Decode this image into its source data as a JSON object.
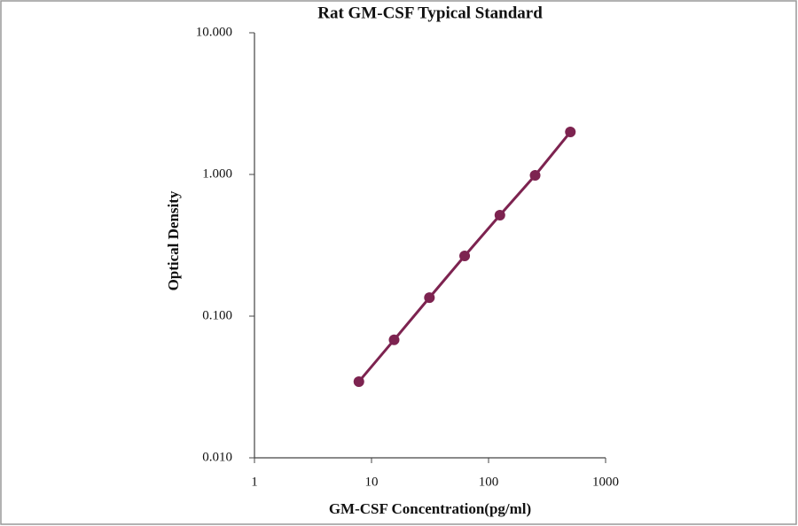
{
  "chart_data": {
    "type": "scatter",
    "title": "Rat GM-CSF Typical Standard",
    "x_label": "GM-CSF Concentration(pg/ml)",
    "y_label": "Optical Density",
    "x_log": true,
    "y_log": true,
    "series": [
      {
        "color": "#7d2350",
        "x": [
          7.8,
          15.6,
          31.25,
          62.5,
          125,
          250,
          500
        ],
        "values": [
          0.0345,
          0.068,
          0.135,
          0.266,
          0.516,
          0.986,
          1.995
        ]
      }
    ],
    "xlim": [
      1,
      1000
    ],
    "xticks": [
      1,
      10,
      100,
      1000
    ],
    "ylim": [
      0.01,
      10
    ],
    "yticks": [
      {
        "value": 0.01,
        "label": "0.010"
      },
      {
        "value": 0.1,
        "label": "0.100"
      },
      {
        "value": 1,
        "label": "1.000"
      },
      {
        "value": 10,
        "label": "10.000"
      }
    ]
  }
}
